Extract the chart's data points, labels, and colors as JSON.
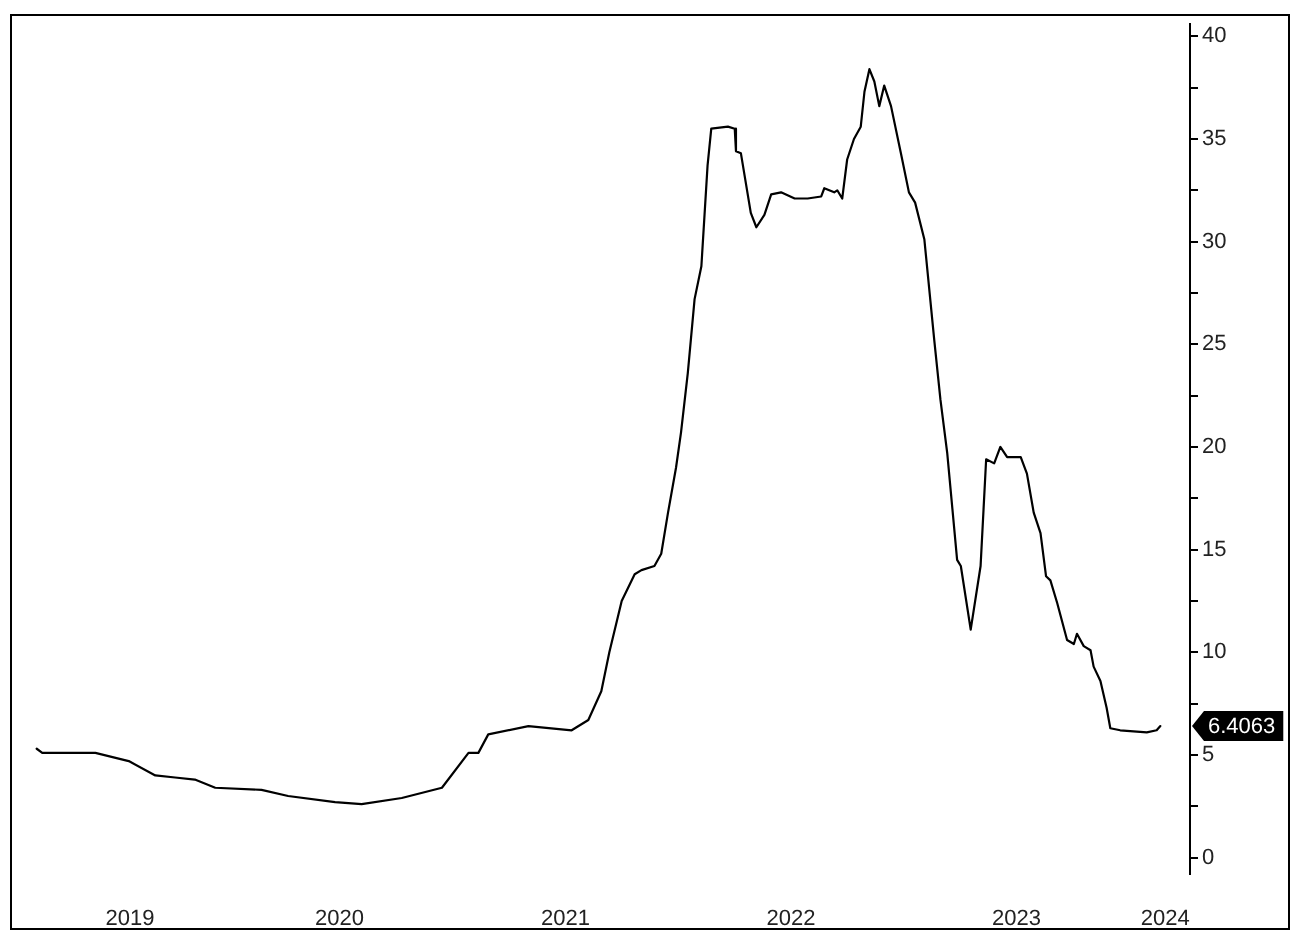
{
  "chart_data": {
    "type": "line",
    "color": "#000000",
    "x": [
      "2019-02-27",
      "2019-03-08",
      "2019-06-02",
      "2019-07-26",
      "2019-09-07",
      "2019-10-09",
      "2019-11-10",
      "2019-12-13",
      "2020-02-26",
      "2020-04-09",
      "2020-06-24",
      "2020-08-06",
      "2020-10-10",
      "2020-12-14",
      "2021-01-26",
      "2021-02-11",
      "2021-02-27",
      "2021-05-03",
      "2021-07-12",
      "2021-08-08",
      "2021-08-29",
      "2021-09-11",
      "2021-10-01",
      "2021-10-22",
      "2021-11-02",
      "2021-11-23",
      "2021-12-04",
      "2021-12-15",
      "2021-12-28",
      "2022-01-05",
      "2022-01-16",
      "2022-01-27",
      "2022-02-07",
      "2022-02-17",
      "2022-02-23",
      "2022-03-22",
      "2022-04-02",
      "2022-04-04",
      "2022-04-12",
      "2022-04-28",
      "2022-05-07",
      "2022-05-20",
      "2022-05-31",
      "2022-06-16",
      "2022-07-08",
      "2022-07-29",
      "2022-08-20",
      "2022-08-25",
      "2022-09-10",
      "2022-09-15",
      "2022-09-23",
      "2022-10-01",
      "2022-10-12",
      "2022-10-23",
      "2022-10-29",
      "2022-11-06",
      "2022-11-14",
      "2022-11-22",
      "2022-11-30",
      "2022-12-11",
      "2022-12-27",
      "2023-01-09",
      "2023-01-19",
      "2023-02-03",
      "2023-02-19",
      "2023-03-01",
      "2023-03-12",
      "2023-03-28",
      "2023-04-03",
      "2023-04-19",
      "2023-05-05",
      "2023-05-14",
      "2023-05-27",
      "2023-06-06",
      "2023-06-17",
      "2023-07-09",
      "2023-07-19",
      "2023-07-30",
      "2023-08-10",
      "2023-08-19",
      "2023-08-26",
      "2023-09-06",
      "2023-09-22",
      "2023-10-03",
      "2023-10-08",
      "2023-10-19",
      "2023-10-30",
      "2023-11-04",
      "2023-11-15",
      "2023-11-25",
      "2023-12-01",
      "2023-12-17",
      "2024-01-29",
      "2024-02-14",
      "2024-02-20"
    ],
    "values": [
      5.3,
      5.1,
      5.1,
      4.7,
      4.0,
      3.9,
      3.8,
      3.4,
      3.3,
      3.0,
      2.7,
      2.6,
      2.9,
      3.4,
      5.1,
      5.1,
      6.0,
      6.4,
      6.2,
      6.7,
      8.1,
      10.0,
      12.5,
      13.8,
      14.0,
      14.2,
      14.8,
      16.8,
      19.0,
      20.7,
      23.6,
      27.2,
      28.8,
      33.7,
      35.5,
      35.6,
      35.5,
      34.4,
      34.3,
      31.4,
      30.7,
      31.3,
      32.3,
      32.4,
      32.1,
      32.1,
      32.2,
      32.6,
      32.4,
      32.5,
      32.1,
      34.0,
      35.0,
      35.6,
      37.3,
      38.4,
      37.8,
      36.6,
      37.6,
      36.6,
      34.3,
      32.4,
      31.9,
      30.1,
      25.2,
      22.3,
      19.7,
      14.5,
      14.2,
      11.1,
      14.2,
      19.4,
      19.2,
      20.0,
      19.5,
      19.5,
      18.7,
      16.8,
      15.8,
      13.7,
      13.5,
      12.4,
      10.6,
      10.4,
      10.9,
      10.3,
      10.1,
      9.3,
      8.6,
      7.3,
      6.3,
      6.2,
      6.1,
      6.2,
      6.4063
    ],
    "xlim": [
      "2019-01-18",
      "2024-04-08"
    ],
    "xticks": [
      {
        "value": "2019-07-28",
        "label": "2019"
      },
      {
        "value": "2020-07-01",
        "label": "2020"
      },
      {
        "value": "2021-07-02",
        "label": "2021"
      },
      {
        "value": "2022-07-02",
        "label": "2022"
      },
      {
        "value": "2023-07-02",
        "label": "2023"
      },
      {
        "value": "2024-02-28",
        "label": "2024"
      }
    ],
    "ylim": [
      -0.8,
      40.6
    ],
    "yticks": [
      0,
      {
        "value": 2.5,
        "label": null
      },
      5,
      {
        "value": 7.5,
        "label": null
      },
      10,
      {
        "value": 12.5,
        "label": null
      },
      15,
      {
        "value": 17.5,
        "label": null
      },
      20,
      {
        "value": 22.5,
        "label": null
      },
      25,
      {
        "value": 27.5,
        "label": null
      },
      30,
      {
        "value": 32.5,
        "label": null
      },
      35,
      {
        "value": 37.5,
        "label": null
      },
      40
    ],
    "annotations": [
      "6.4063"
    ],
    "grid": false,
    "legend": false
  }
}
